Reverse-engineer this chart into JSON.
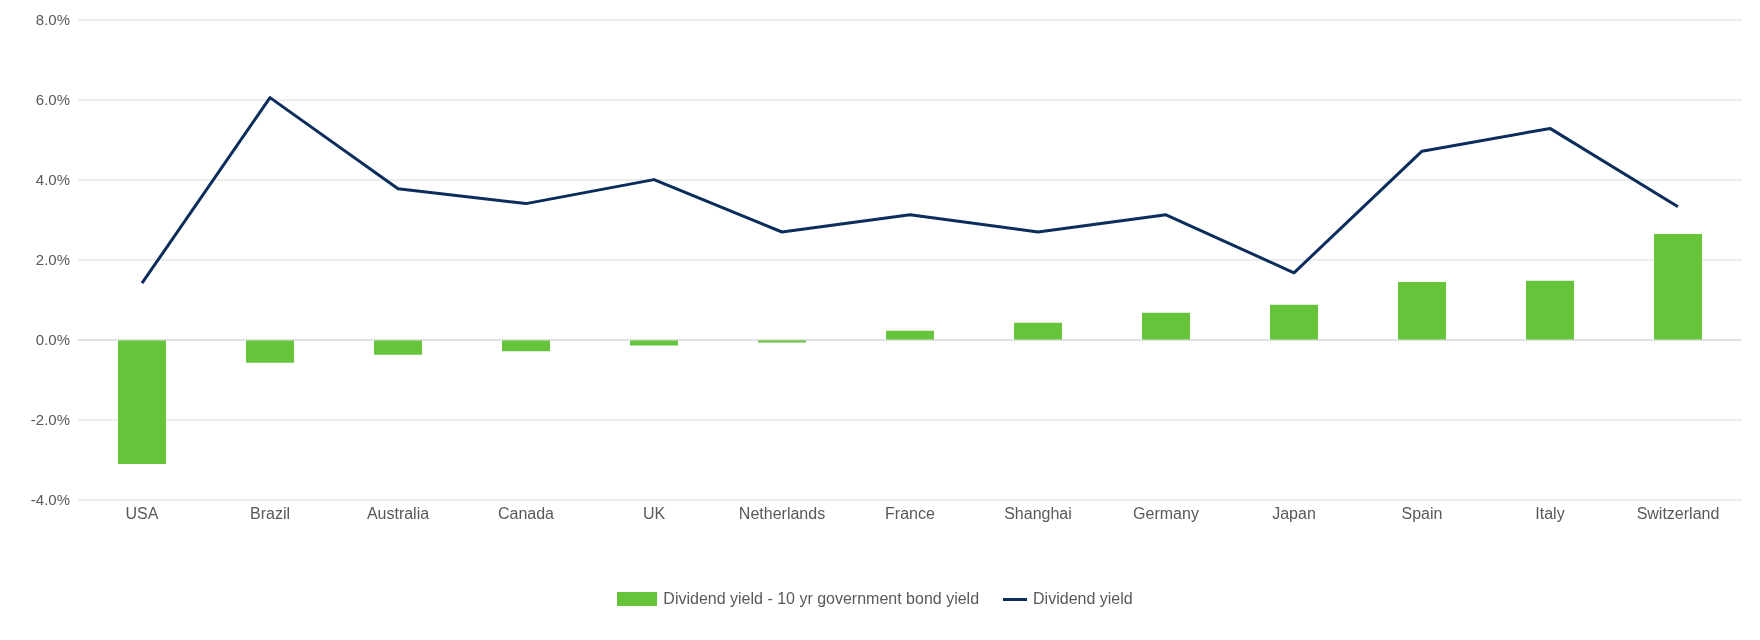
{
  "chart_data": {
    "type": "bar",
    "categories": [
      "USA",
      "Brazil",
      "Australia",
      "Canada",
      "UK",
      "Netherlands",
      "France",
      "Shanghai",
      "Germany",
      "Japan",
      "Spain",
      "Italy",
      "Switzerland"
    ],
    "series": [
      {
        "name": "Dividend yield - 10 yr government bond yield",
        "color": "#66c43a",
        "values": [
          -3.1,
          -0.57,
          -0.37,
          -0.28,
          -0.14,
          -0.06,
          0.23,
          0.43,
          0.68,
          0.88,
          1.45,
          1.48,
          2.65
        ]
      },
      {
        "name": "Dividend yield",
        "type": "line",
        "color": "#0b2d5b",
        "values": [
          1.42,
          6.06,
          3.78,
          3.41,
          4.01,
          2.7,
          3.13,
          2.7,
          3.13,
          1.68,
          4.72,
          5.29,
          3.33
        ]
      }
    ],
    "ylim": [
      -4,
      8
    ],
    "yticks": [
      {
        "value": -4,
        "label": "-4.0%"
      },
      {
        "value": -2,
        "label": "-2.0%"
      },
      {
        "value": 0,
        "label": "0.0%"
      },
      {
        "value": 2,
        "label": "2.0%"
      },
      {
        "value": 4,
        "label": "4.0%"
      },
      {
        "value": 6,
        "label": "6.0%"
      },
      {
        "value": 8,
        "label": "8.0%"
      }
    ],
    "grid": "y",
    "legend": "bottom",
    "marker": "none"
  }
}
